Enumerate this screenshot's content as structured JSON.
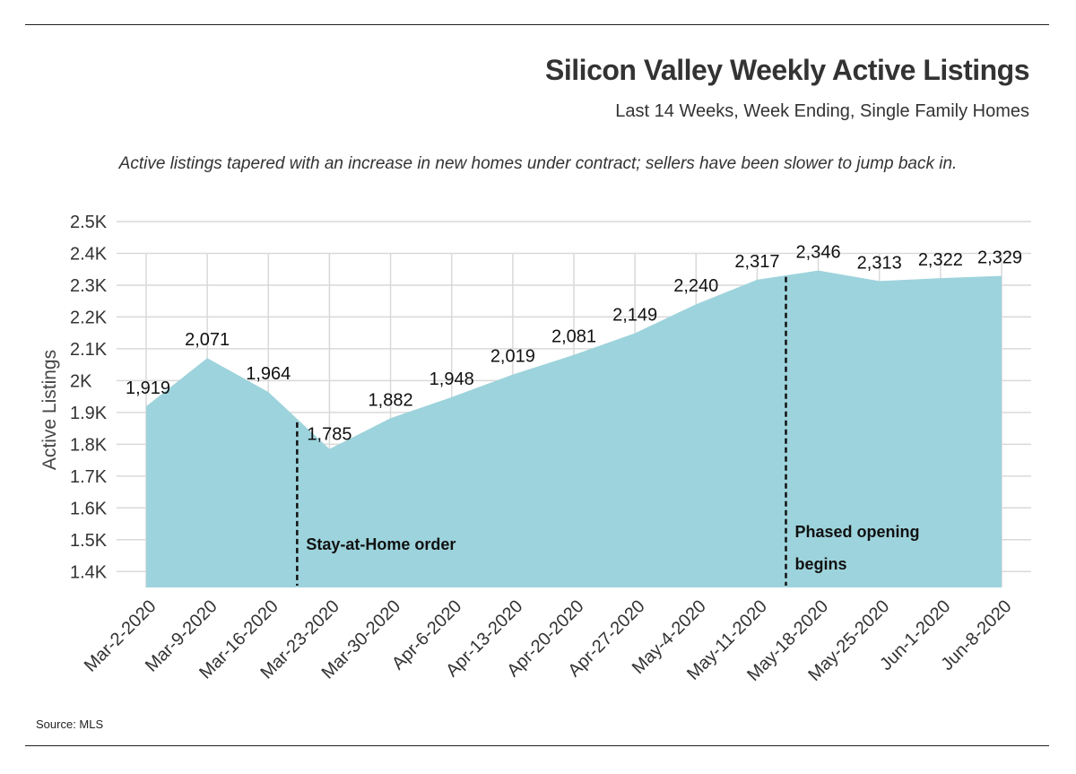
{
  "header": {
    "title": "Silicon Valley Weekly Active Listings",
    "subtitle": "Last 14 Weeks, Week Ending, Single Family Homes",
    "note": "Active listings tapered with an increase in new homes under contract; sellers have been slower to jump back in."
  },
  "footer": {
    "source": "Source: MLS"
  },
  "colors": {
    "area": "#9dd3dc",
    "grid": "#d9d9d9",
    "marker_line": "#111111"
  },
  "chart_data": {
    "type": "area",
    "ylabel": "Active Listings",
    "ylim": [
      1350,
      2500
    ],
    "y_ticks": [
      {
        "value": 1400,
        "label": "1.4K"
      },
      {
        "value": 1500,
        "label": "1.5K"
      },
      {
        "value": 1600,
        "label": "1.6K"
      },
      {
        "value": 1700,
        "label": "1.7K"
      },
      {
        "value": 1800,
        "label": "1.8K"
      },
      {
        "value": 1900,
        "label": "1.9K"
      },
      {
        "value": 2000,
        "label": "2K"
      },
      {
        "value": 2100,
        "label": "2.1K"
      },
      {
        "value": 2200,
        "label": "2.2K"
      },
      {
        "value": 2300,
        "label": "2.3K"
      },
      {
        "value": 2400,
        "label": "2.4K"
      },
      {
        "value": 2500,
        "label": "2.5K"
      }
    ],
    "categories": [
      "Mar-2-2020",
      "Mar-9-2020",
      "Mar-16-2020",
      "Mar-23-2020",
      "Mar-30-2020",
      "Apr-6-2020",
      "Apr-13-2020",
      "Apr-20-2020",
      "Apr-27-2020",
      "May-4-2020",
      "May-11-2020",
      "May-18-2020",
      "May-25-2020",
      "Jun-1-2020",
      "Jun-8-2020"
    ],
    "values": [
      1919,
      2071,
      1964,
      1785,
      1882,
      1948,
      2019,
      2081,
      2149,
      2240,
      2317,
      2346,
      2313,
      2322,
      2329
    ],
    "data_labels": [
      "1,919",
      "2,071",
      "1,964",
      "1,785",
      "1,882",
      "1,948",
      "2,019",
      "2,081",
      "2,149",
      "2,240",
      "2,317",
      "2,346",
      "2,313",
      "2,322",
      "2,329"
    ],
    "grid": true,
    "annotations": [
      {
        "after_index": 2,
        "lines": [
          "Stay-at-Home order"
        ]
      },
      {
        "after_index": 10,
        "lines": [
          "Phased opening",
          "begins"
        ]
      }
    ]
  }
}
